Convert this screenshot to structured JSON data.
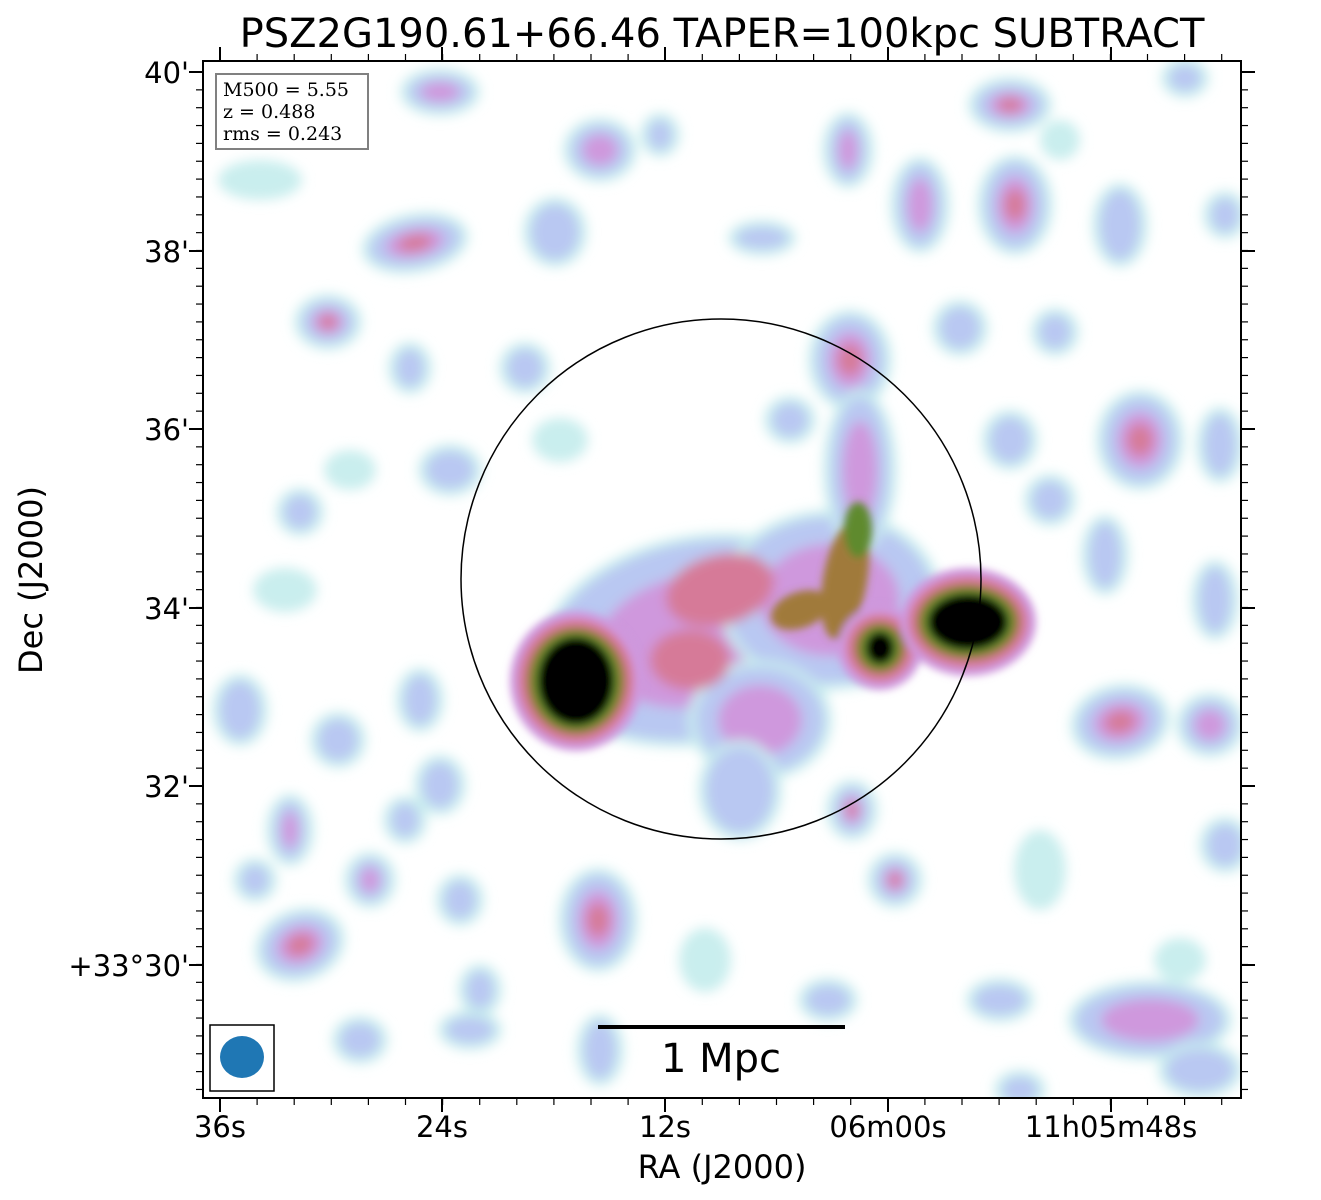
{
  "chart_data": {
    "type": "heatmap",
    "title": "PSZ2G190.61+66.46 TAPER=100kpc SUBTRACT",
    "xlabel": "RA (J2000)",
    "ylabel": "Dec (J2000)",
    "x_tick_labels": [
      "36s",
      "24s",
      "12s",
      "06m00s",
      "11h05m48s"
    ],
    "y_tick_labels": [
      "40'",
      "38'",
      "36'",
      "34'",
      "32'",
      "+33°30'"
    ],
    "info_box": [
      "M500 = 5.55",
      "z = 0.488",
      "rms = 0.243"
    ],
    "scale_bar_label": "1 Mpc",
    "colormap": [
      "#ffffff",
      "#c9eeee",
      "#b9c8f2",
      "#cf98dd",
      "#d67a98",
      "#a07a3a",
      "#5e8a2e",
      "#000000"
    ],
    "beam_color": "#1f77b4",
    "circle_color": "#000000"
  }
}
